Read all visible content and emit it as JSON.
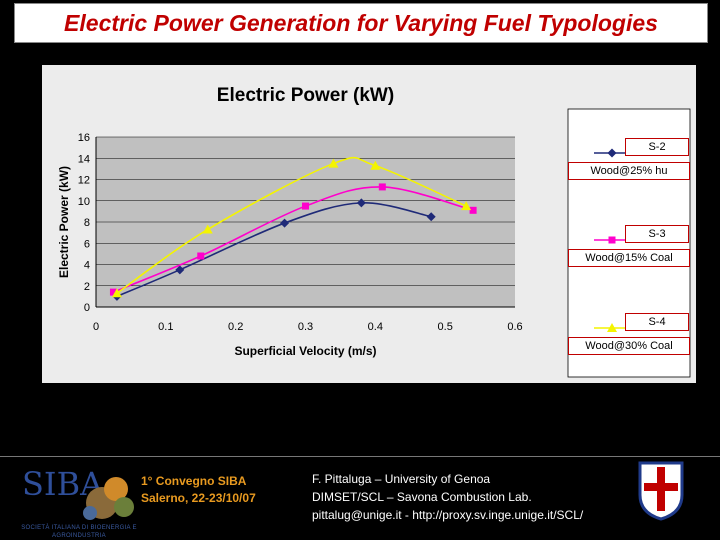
{
  "slide": {
    "title": "Electric Power Generation for Varying Fuel Typologies",
    "conference_line1": "1° Convegno SIBA",
    "conference_line2": "Salerno, 22-23/10/07",
    "credit_line1": "F. Pittaluga – University of Genoa",
    "credit_line2": "DIMSET/SCL – Savona Combustion Lab.",
    "credit_line3": "pittalug@unige.it - http://proxy.sv.inge.unige.it/SCL/",
    "logo_text": "SIBA",
    "logo_subtitle": "SOCIETÀ ITALIANA DI BIOENERGIA E AGROINDUSTRIA"
  },
  "chart_data": {
    "type": "line",
    "title": "Electric Power (kW)",
    "xlabel": "Superficial Velocity (m/s)",
    "ylabel": "Electric Power (kW)",
    "xlim": [
      0,
      0.6
    ],
    "ylim": [
      0,
      16
    ],
    "xticks": [
      "0",
      "0.1",
      "0.2",
      "0.3",
      "0.4",
      "0.5",
      "0.6"
    ],
    "yticks": [
      "0",
      "2",
      "4",
      "6",
      "8",
      "10",
      "12",
      "14",
      "16"
    ],
    "grid": true,
    "legend_position": "right",
    "series": [
      {
        "name": "S-2",
        "label": "Wood@25% hu",
        "color": "#1f2a78",
        "marker": "diamond",
        "x": [
          0.03,
          0.12,
          0.27,
          0.38,
          0.48
        ],
        "y": [
          1.0,
          3.5,
          7.9,
          9.8,
          8.5
        ]
      },
      {
        "name": "S-3",
        "label": "Wood@15% Coal",
        "color": "#ff00cc",
        "marker": "square",
        "x": [
          0.025,
          0.15,
          0.3,
          0.41,
          0.54
        ],
        "y": [
          1.4,
          4.8,
          9.5,
          11.3,
          9.1
        ]
      },
      {
        "name": "S-4",
        "label": "Wood@30% Coal",
        "color": "#f4f400",
        "marker": "triangle",
        "x": [
          0.03,
          0.16,
          0.34,
          0.4,
          0.53
        ],
        "y": [
          1.3,
          7.3,
          13.5,
          13.3,
          9.5
        ]
      }
    ]
  }
}
